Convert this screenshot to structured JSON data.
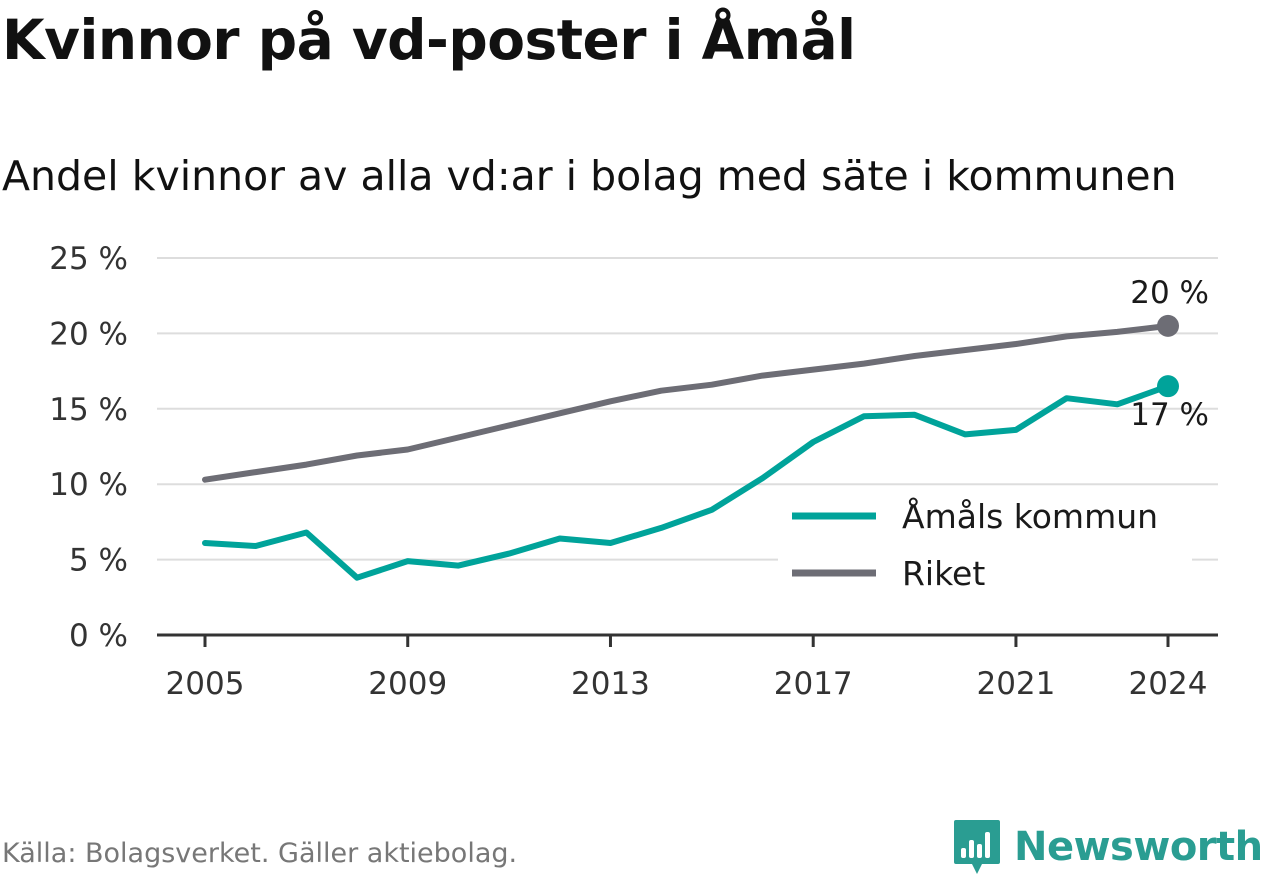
{
  "title": "Kvinnor på vd-poster i Åmål",
  "subtitle": "Andel kvinnor av alla vd:ar i bolag med säte i kommunen",
  "source": "Källa: Bolagsverket. Gäller aktiebolag.",
  "brand": "Newsworthy",
  "colors": {
    "amal": "#00a39a",
    "riket": "#6d6d75",
    "grid": "#dddddd",
    "axis": "#333333",
    "brand": "#2a9d92"
  },
  "chart_data": {
    "type": "line",
    "x": [
      2005,
      2006,
      2007,
      2008,
      2009,
      2010,
      2011,
      2012,
      2013,
      2014,
      2015,
      2016,
      2017,
      2018,
      2019,
      2020,
      2021,
      2022,
      2023,
      2024
    ],
    "xticks": [
      2005,
      2009,
      2013,
      2017,
      2021,
      2024
    ],
    "xtick_labels": [
      "2005",
      "2009",
      "2013",
      "2017",
      "2021",
      "2024"
    ],
    "ylim": [
      0,
      25
    ],
    "yticks": [
      0,
      5,
      10,
      15,
      20,
      25
    ],
    "ytick_labels": [
      "0 %",
      "5 %",
      "10 %",
      "15 %",
      "20 %",
      "25 %"
    ],
    "grid": true,
    "legend_position": "lower-right",
    "series": [
      {
        "name": "Åmåls kommun",
        "color": "#00a39a",
        "values": [
          6.1,
          5.9,
          6.8,
          3.8,
          4.9,
          4.6,
          5.4,
          6.4,
          6.1,
          7.1,
          8.3,
          10.4,
          12.8,
          14.5,
          14.6,
          13.3,
          13.6,
          15.7,
          15.3,
          16.5
        ],
        "end_label": "17 %"
      },
      {
        "name": "Riket",
        "color": "#6d6d75",
        "values": [
          10.3,
          10.8,
          11.3,
          11.9,
          12.3,
          13.1,
          13.9,
          14.7,
          15.5,
          16.2,
          16.6,
          17.2,
          17.6,
          18.0,
          18.5,
          18.9,
          19.3,
          19.8,
          20.1,
          20.5
        ],
        "end_label": "20 %"
      }
    ]
  }
}
